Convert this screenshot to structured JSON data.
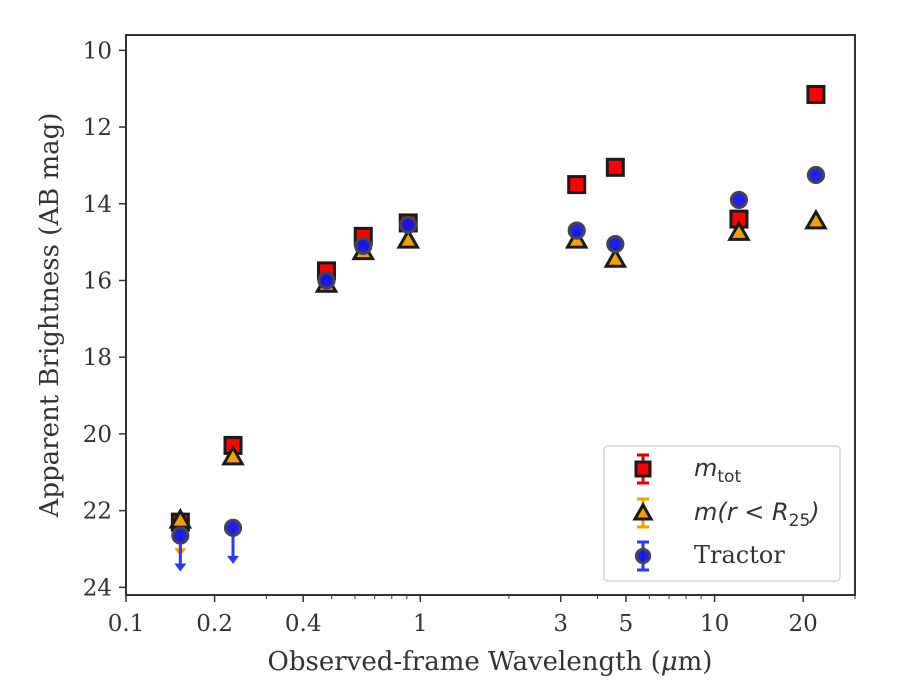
{
  "chart_data": {
    "type": "scatter",
    "xlabel_main": "Observed-frame Wavelength (",
    "xlabel_mu": "μ",
    "xlabel_end": "m)",
    "ylabel": "Apparent Brightness (AB mag)",
    "xscale": "log",
    "yaxis_inverted": true,
    "xlim": [
      0.1,
      30
    ],
    "ylim": [
      24.2,
      9.6
    ],
    "x_ticks": [
      {
        "value": 0.1,
        "label": "0.1"
      },
      {
        "value": 0.2,
        "label": "0.2"
      },
      {
        "value": 0.4,
        "label": "0.4"
      },
      {
        "value": 1,
        "label": "1"
      },
      {
        "value": 3,
        "label": "3"
      },
      {
        "value": 5,
        "label": "5"
      },
      {
        "value": 10,
        "label": "10"
      },
      {
        "value": 20,
        "label": "20"
      }
    ],
    "y_ticks": [
      {
        "value": 10,
        "label": "10"
      },
      {
        "value": 12,
        "label": "12"
      },
      {
        "value": 14,
        "label": "14"
      },
      {
        "value": 16,
        "label": "16"
      },
      {
        "value": 18,
        "label": "18"
      },
      {
        "value": 20,
        "label": "20"
      },
      {
        "value": 22,
        "label": "22"
      },
      {
        "value": 24,
        "label": "24"
      }
    ],
    "grid": false,
    "legend_position": "lower-right",
    "series": [
      {
        "name": "m_tot",
        "legend_main": "m",
        "legend_sub": "tot",
        "marker": "square",
        "color": "#ff0000",
        "edge_color": "#1a1a1a",
        "error_color": "#e00000",
        "points": [
          {
            "x": 0.153,
            "y": 22.3
          },
          {
            "x": 0.231,
            "y": 20.3
          },
          {
            "x": 0.48,
            "y": 15.75
          },
          {
            "x": 0.64,
            "y": 14.85
          },
          {
            "x": 0.91,
            "y": 14.5
          },
          {
            "x": 3.4,
            "y": 13.5
          },
          {
            "x": 4.6,
            "y": 13.05
          },
          {
            "x": 12.1,
            "y": 14.4
          },
          {
            "x": 22.1,
            "y": 11.15
          }
        ]
      },
      {
        "name": "m(r<R_25)",
        "legend_main": "m(r < R",
        "legend_sub": "25",
        "legend_end": ")",
        "marker": "triangle",
        "color": "#f5a000",
        "edge_color": "#1a1a1a",
        "error_color": "#f5a000",
        "points": [
          {
            "x": 0.153,
            "y": 22.25,
            "upper_limit": true
          },
          {
            "x": 0.231,
            "y": 20.6
          },
          {
            "x": 0.48,
            "y": 16.1
          },
          {
            "x": 0.64,
            "y": 15.25
          },
          {
            "x": 0.91,
            "y": 14.95
          },
          {
            "x": 3.4,
            "y": 14.95
          },
          {
            "x": 4.6,
            "y": 15.45
          },
          {
            "x": 12.1,
            "y": 14.75
          },
          {
            "x": 22.1,
            "y": 14.45
          }
        ]
      },
      {
        "name": "Tractor",
        "legend_main": "Tractor",
        "marker": "circle",
        "color": "#1515ee",
        "edge_color": "#444455",
        "error_color": "#2a3af0",
        "points": [
          {
            "x": 0.153,
            "y": 22.65,
            "upper_limit": true
          },
          {
            "x": 0.231,
            "y": 22.45,
            "upper_limit": true
          },
          {
            "x": 0.48,
            "y": 16.0
          },
          {
            "x": 0.64,
            "y": 15.1
          },
          {
            "x": 0.91,
            "y": 14.55
          },
          {
            "x": 3.4,
            "y": 14.7
          },
          {
            "x": 4.6,
            "y": 15.05
          },
          {
            "x": 12.1,
            "y": 13.9
          },
          {
            "x": 22.1,
            "y": 13.25
          }
        ]
      }
    ]
  }
}
